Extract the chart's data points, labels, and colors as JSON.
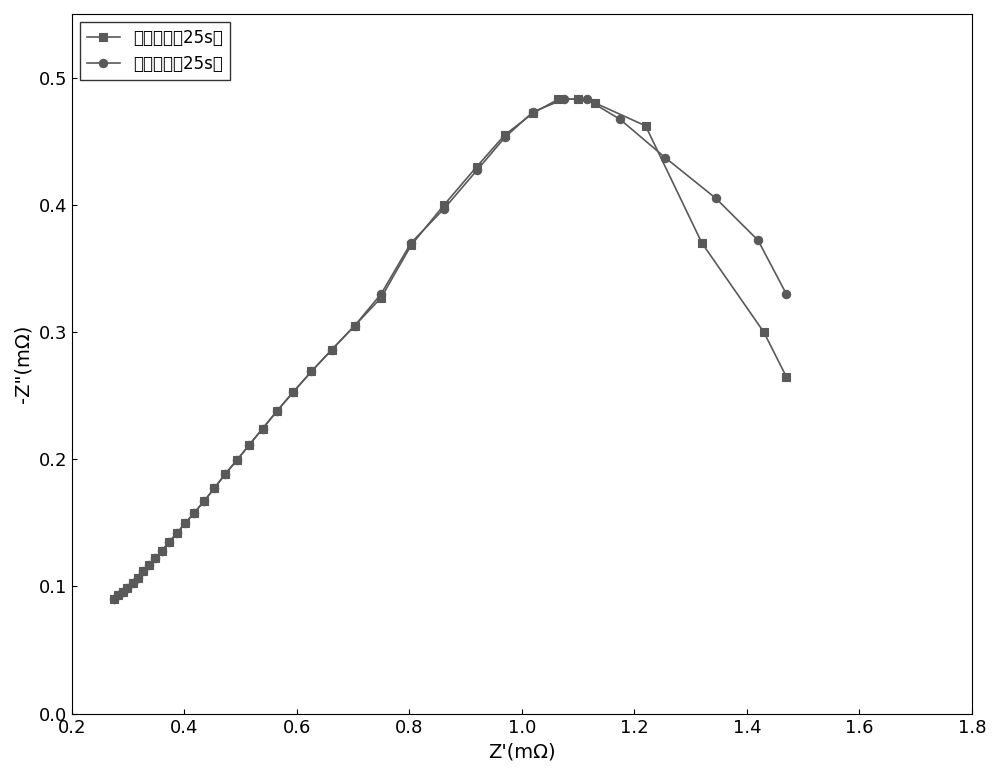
{
  "measured_x": [
    0.275,
    0.283,
    0.291,
    0.299,
    0.308,
    0.317,
    0.327,
    0.337,
    0.348,
    0.36,
    0.373,
    0.387,
    0.402,
    0.418,
    0.435,
    0.453,
    0.472,
    0.493,
    0.515,
    0.539,
    0.565,
    0.594,
    0.626,
    0.662,
    0.703,
    0.75,
    0.803,
    0.862,
    0.92,
    0.97,
    1.02,
    1.065,
    1.1,
    1.13,
    1.22,
    1.32,
    1.43,
    1.47
  ],
  "measured_y": [
    0.09,
    0.093,
    0.096,
    0.099,
    0.103,
    0.107,
    0.112,
    0.117,
    0.122,
    0.128,
    0.135,
    0.142,
    0.15,
    0.158,
    0.167,
    0.177,
    0.188,
    0.199,
    0.211,
    0.224,
    0.238,
    0.253,
    0.269,
    0.286,
    0.305,
    0.327,
    0.368,
    0.4,
    0.43,
    0.455,
    0.472,
    0.483,
    0.483,
    0.48,
    0.462,
    0.37,
    0.3,
    0.265
  ],
  "predicted_x": [
    0.275,
    0.283,
    0.291,
    0.299,
    0.308,
    0.317,
    0.327,
    0.337,
    0.348,
    0.36,
    0.373,
    0.387,
    0.402,
    0.418,
    0.435,
    0.453,
    0.472,
    0.493,
    0.515,
    0.539,
    0.565,
    0.594,
    0.626,
    0.662,
    0.703,
    0.75,
    0.803,
    0.862,
    0.92,
    0.97,
    1.02,
    1.075,
    1.115,
    1.175,
    1.255,
    1.345,
    1.42,
    1.47
  ],
  "predicted_y": [
    0.09,
    0.093,
    0.096,
    0.099,
    0.103,
    0.107,
    0.112,
    0.117,
    0.122,
    0.128,
    0.135,
    0.142,
    0.15,
    0.158,
    0.167,
    0.177,
    0.188,
    0.199,
    0.211,
    0.224,
    0.238,
    0.253,
    0.269,
    0.286,
    0.305,
    0.33,
    0.37,
    0.397,
    0.427,
    0.453,
    0.473,
    0.483,
    0.483,
    0.467,
    0.437,
    0.405,
    0.372,
    0.33
  ],
  "line_color": "#595959",
  "measured_marker": "s",
  "predicted_marker": "o",
  "measured_label": "测量数据（25s）",
  "predicted_label": "预测结果（25s）",
  "xlabel": "Z'(mΩ)",
  "ylabel": "-Z\"(mΩ)",
  "xlim": [
    0.2,
    1.8
  ],
  "ylim": [
    0.0,
    0.55
  ],
  "xticks": [
    0.2,
    0.4,
    0.6,
    0.8,
    1.0,
    1.2,
    1.4,
    1.6,
    1.8
  ],
  "yticks": [
    0.0,
    0.1,
    0.2,
    0.3,
    0.4,
    0.5
  ],
  "marker_size": 6,
  "line_width": 1.2,
  "font_size": 14,
  "legend_font_size": 12,
  "background_color": "#ffffff"
}
